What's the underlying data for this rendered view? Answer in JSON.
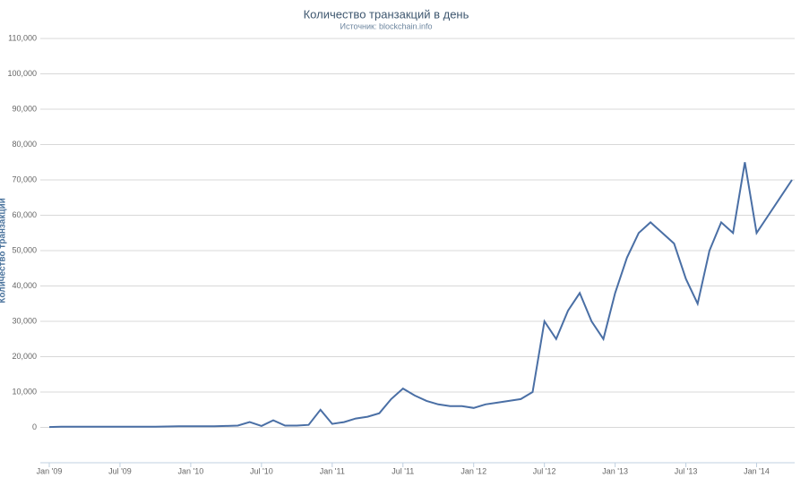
{
  "chart_data": {
    "type": "line",
    "title": "Количество транзакций в день",
    "subtitle": "Источник: blockchain.info",
    "y_label": "Количество транзакций",
    "x": [
      "2009-01",
      "2009-02",
      "2009-03",
      "2009-04",
      "2009-05",
      "2009-06",
      "2009-07",
      "2009-08",
      "2009-09",
      "2009-10",
      "2009-11",
      "2009-12",
      "2010-01",
      "2010-02",
      "2010-03",
      "2010-04",
      "2010-05",
      "2010-06",
      "2010-07",
      "2010-08",
      "2010-09",
      "2010-10",
      "2010-11",
      "2010-12",
      "2011-01",
      "2011-02",
      "2011-03",
      "2011-04",
      "2011-05",
      "2011-06",
      "2011-07",
      "2011-08",
      "2011-09",
      "2011-10",
      "2011-11",
      "2011-12",
      "2012-01",
      "2012-02",
      "2012-03",
      "2012-04",
      "2012-05",
      "2012-06",
      "2012-07",
      "2012-08",
      "2012-09",
      "2012-10",
      "2012-11",
      "2012-12",
      "2013-01",
      "2013-02",
      "2013-03",
      "2013-04",
      "2013-05",
      "2013-06",
      "2013-07",
      "2013-08",
      "2013-09",
      "2013-10",
      "2013-11",
      "2013-12",
      "2014-01",
      "2014-02",
      "2014-03",
      "2014-04"
    ],
    "series": [
      {
        "name": "Количество транзакций",
        "color": "#4a6fa5",
        "values": [
          100,
          200,
          200,
          200,
          200,
          200,
          200,
          200,
          200,
          200,
          250,
          300,
          300,
          300,
          300,
          400,
          500,
          1500,
          400,
          2000,
          500,
          500,
          700,
          5000,
          1000,
          1500,
          2500,
          3000,
          4000,
          8000,
          11000,
          9000,
          7500,
          6500,
          6000,
          6000,
          5500,
          6500,
          7000,
          7500,
          8000,
          10000,
          30000,
          25000,
          33000,
          38000,
          30000,
          25000,
          38000,
          48000,
          55000,
          58000,
          55000,
          52000,
          42000,
          35000,
          50000,
          58000,
          55000,
          75000,
          55000,
          60000,
          65000,
          70000
        ]
      }
    ],
    "xlim": [
      "2009-01",
      "2014-04"
    ],
    "xticks": [
      {
        "value": "2009-01",
        "label": "Jan '09"
      },
      {
        "value": "2009-07",
        "label": "Jul '09"
      },
      {
        "value": "2010-01",
        "label": "Jan '10"
      },
      {
        "value": "2010-07",
        "label": "Jul '10"
      },
      {
        "value": "2011-01",
        "label": "Jan '11"
      },
      {
        "value": "2011-07",
        "label": "Jul '11"
      },
      {
        "value": "2012-01",
        "label": "Jan '12"
      },
      {
        "value": "2012-07",
        "label": "Jul '12"
      },
      {
        "value": "2013-01",
        "label": "Jan '13"
      },
      {
        "value": "2013-07",
        "label": "Jul '13"
      },
      {
        "value": "2014-01",
        "label": "Jan '14"
      }
    ],
    "ylim": [
      -10000,
      110000
    ],
    "yticks": [
      0,
      {
        "value": 10000,
        "label": "10,000"
      },
      {
        "value": 20000,
        "label": "20,000"
      },
      {
        "value": 30000,
        "label": "30,000"
      },
      {
        "value": 40000,
        "label": "40,000"
      },
      {
        "value": 50000,
        "label": "50,000"
      },
      {
        "value": 60000,
        "label": "60,000"
      },
      {
        "value": 70000,
        "label": "70,000"
      },
      {
        "value": 80000,
        "label": "80,000"
      },
      {
        "value": 90000,
        "label": "90,000"
      },
      {
        "value": 100000,
        "label": "100,000"
      },
      {
        "value": 110000,
        "label": "110,000"
      }
    ],
    "grid": true
  }
}
